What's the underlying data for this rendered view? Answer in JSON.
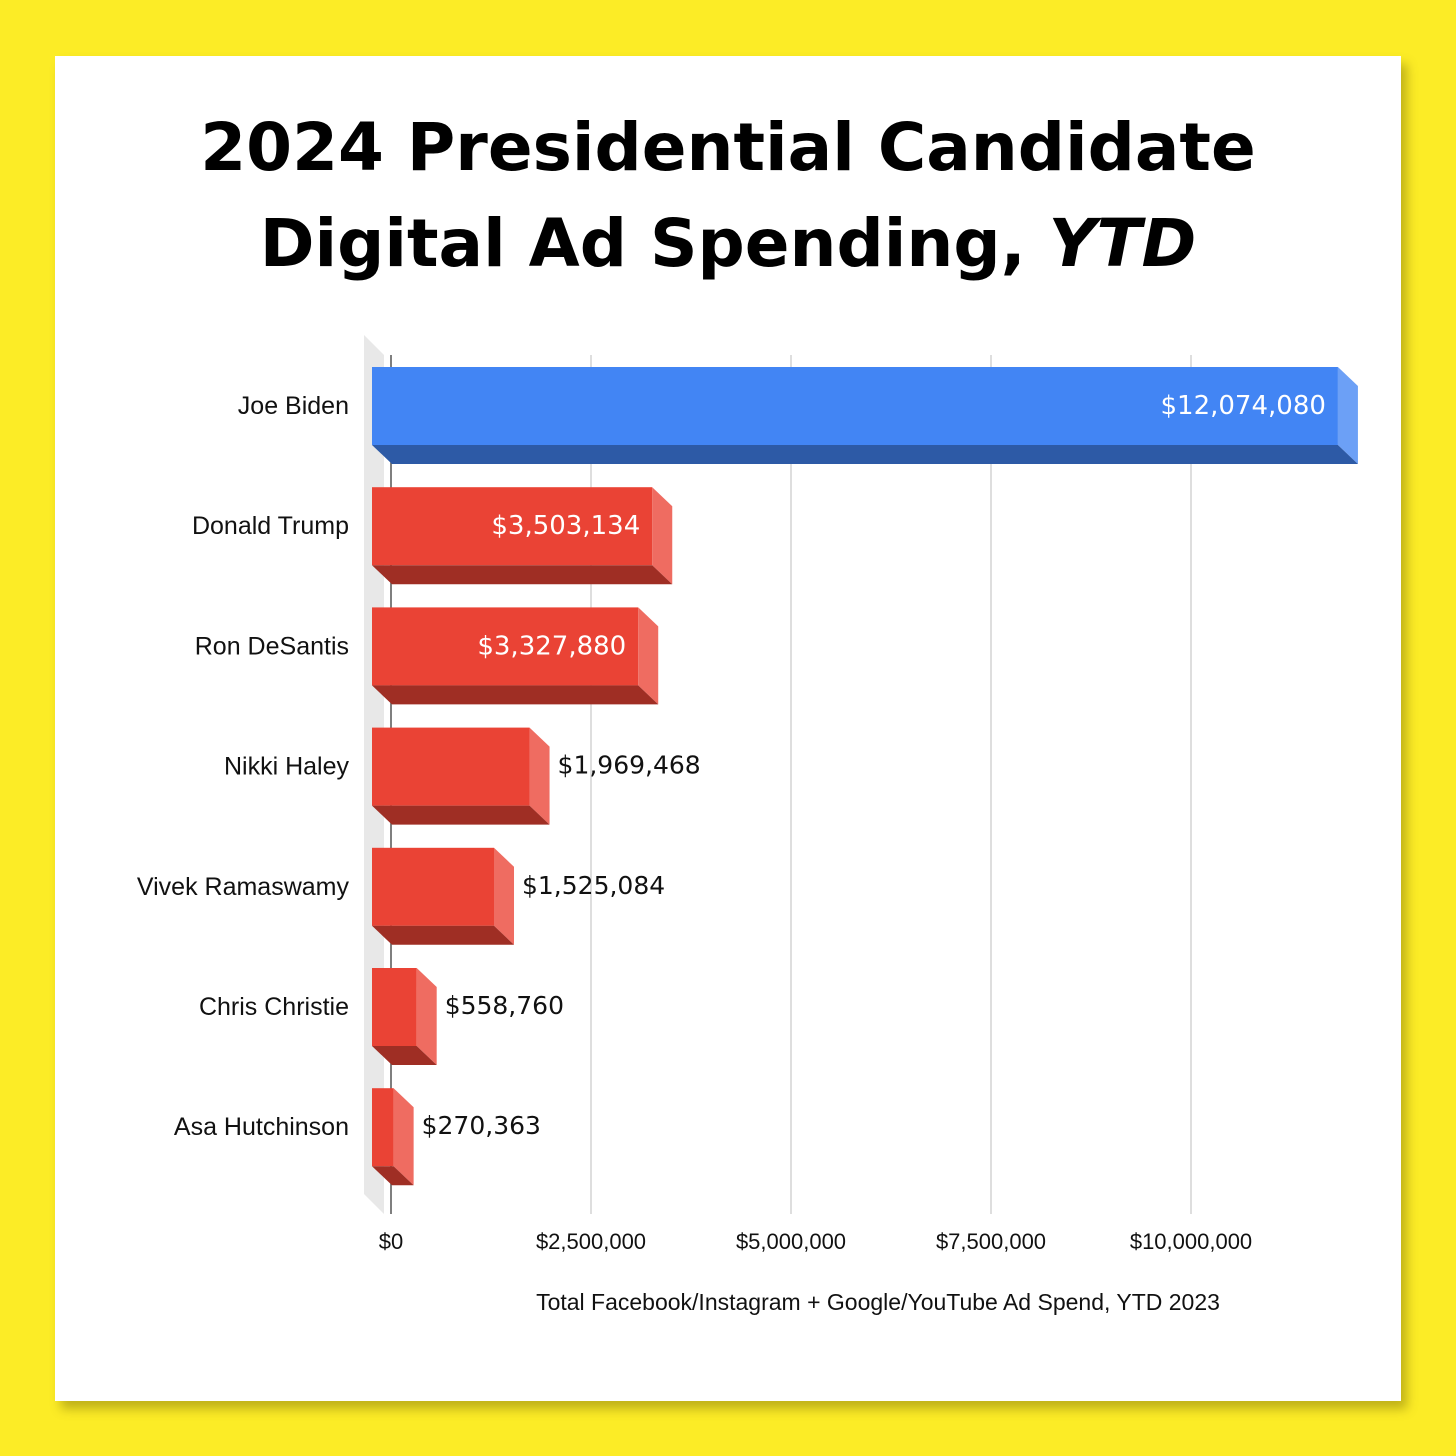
{
  "title": {
    "line1": "2024 Presidential Candidate",
    "line2_main": "Digital Ad Spending,",
    "line2_emph": "YTD"
  },
  "colors": {
    "background": "#FCEC26",
    "democrat_bar": "#4285F4",
    "republican_bar": "#EA4335"
  },
  "chart_data": {
    "type": "bar",
    "orientation": "horizontal",
    "style": "3d",
    "categories": [
      "Joe Biden",
      "Donald Trump",
      "Ron DeSantis",
      "Nikki Haley",
      "Vivek Ramaswamy",
      "Chris Christie",
      "Asa Hutchinson"
    ],
    "values": [
      12074080,
      3503134,
      3327880,
      1969468,
      1525084,
      558760,
      270363
    ],
    "value_labels": [
      "$12,074,080",
      "$3,503,134",
      "$3,327,880",
      "$1,969,468",
      "$1,525,084",
      "$558,760",
      "$270,363"
    ],
    "bar_colors": [
      "#4285F4",
      "#EA4335",
      "#EA4335",
      "#EA4335",
      "#EA4335",
      "#EA4335",
      "#EA4335"
    ],
    "xlim": [
      0,
      12500000
    ],
    "x_ticks": [
      0,
      2500000,
      5000000,
      7500000,
      10000000
    ],
    "x_tick_labels": [
      "$0",
      "$2,500,000",
      "$5,000,000",
      "$7,500,000",
      "$10,000,000"
    ],
    "xlabel": "Total Facebook/Instagram + Google/YouTube Ad Spend, YTD 2023",
    "ylabel": "",
    "grid": "vertical",
    "legend": "none"
  }
}
